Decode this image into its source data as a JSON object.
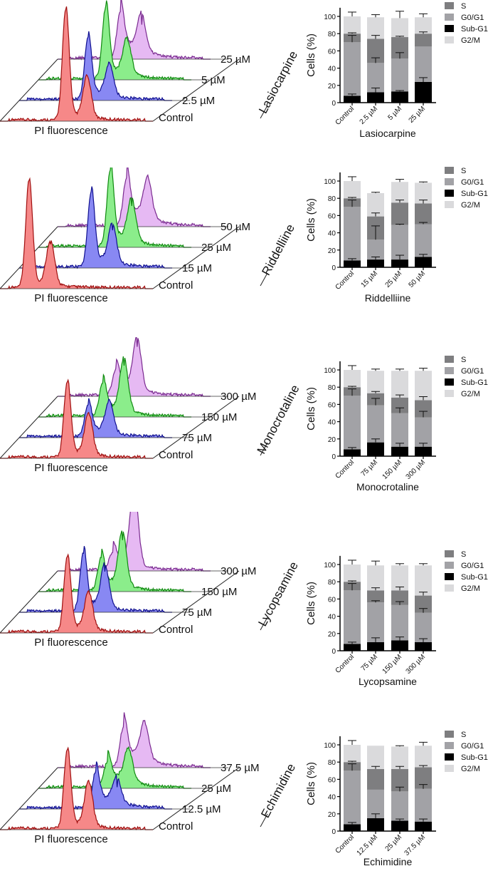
{
  "legend": {
    "order": [
      "S",
      "G0/G1",
      "Sub-G1",
      "G2/M"
    ],
    "colors": {
      "Sub-G1": "#000000",
      "G0/G1": "#a2a2a6",
      "S": "#7e7e80",
      "G2/M": "#dadadc"
    }
  },
  "trace_colors": [
    {
      "fill": "#f46a6a",
      "line": "#a01010"
    },
    {
      "fill": "#6a6af0",
      "line": "#101090"
    },
    {
      "fill": "#6ee86e",
      "line": "#108a10"
    },
    {
      "fill": "#e0a8f0",
      "line": "#7a2a90"
    }
  ],
  "chart_data": [
    {
      "type": "bar",
      "stacked": true,
      "xlabel": "Lasiocarpine",
      "ylabel": "Cells (%)",
      "ylim": [
        0,
        110
      ],
      "yticks": [
        "0",
        "20",
        "40",
        "60",
        "80",
        "100"
      ],
      "categories": [
        "Control",
        "2.5 µM",
        "5 µM",
        "25 µM"
      ],
      "series": [
        {
          "name": "Sub-G1",
          "values": [
            8,
            12,
            13,
            24
          ],
          "errors": [
            2,
            5,
            1,
            5
          ]
        },
        {
          "name": "G0/G1",
          "values": [
            62,
            34,
            38,
            41
          ],
          "errors": [
            8,
            6,
            7,
            0
          ]
        },
        {
          "name": "S",
          "values": [
            10,
            28,
            25,
            15
          ],
          "errors": [
            1,
            4,
            1,
            2
          ]
        },
        {
          "name": "G2/M",
          "values": [
            20,
            25,
            22,
            19
          ],
          "errors": [
            5,
            3,
            8,
            4
          ]
        }
      ],
      "histogram": {
        "xlabel": "PI fluorescence",
        "compound": "Lasiocarpine",
        "labels": [
          "Control",
          "2.5 µM",
          "5 µM",
          "25 µM"
        ],
        "traces": [
          {
            "p": 0.43,
            "g1": 155,
            "g2": 55,
            "s": 12
          },
          {
            "p": 0.45,
            "g1": 88,
            "g2": 40,
            "s": 18
          },
          {
            "p": 0.44,
            "g1": 100,
            "g2": 45,
            "s": 22
          },
          {
            "p": 0.41,
            "g1": 65,
            "g2": 45,
            "s": 35
          }
        ]
      }
    },
    {
      "type": "bar",
      "stacked": true,
      "xlabel": "Riddelliine",
      "ylabel": "Cells (%)",
      "ylim": [
        0,
        110
      ],
      "yticks": [
        "0",
        "20",
        "40",
        "60",
        "80",
        "100"
      ],
      "categories": [
        "Control",
        "15 µM",
        "25 µM",
        "50 µM"
      ],
      "series": [
        {
          "name": "Sub-G1",
          "values": [
            8,
            9,
            9,
            12
          ],
          "errors": [
            2,
            3,
            5,
            3
          ]
        },
        {
          "name": "G0/G1",
          "values": [
            62,
            23,
            40,
            38
          ],
          "errors": [
            8,
            16,
            1,
            2
          ]
        },
        {
          "name": "S",
          "values": [
            10,
            27,
            26,
            24
          ],
          "errors": [
            1,
            4,
            3,
            4
          ]
        },
        {
          "name": "G2/M",
          "values": [
            20,
            27,
            24,
            24
          ],
          "errors": [
            5,
            1,
            3,
            1
          ]
        }
      ],
      "histogram": {
        "xlabel": "PI fluorescence",
        "compound": "Riddelliine",
        "labels": [
          "Control",
          "15 µM",
          "25 µM",
          "50 µM"
        ],
        "traces": [
          {
            "p": 0.19,
            "g1": 150,
            "g2": 60,
            "s": 12
          },
          {
            "p": 0.47,
            "g1": 105,
            "g2": 50,
            "s": 20
          },
          {
            "p": 0.47,
            "g1": 107,
            "g2": 55,
            "s": 25
          },
          {
            "p": 0.45,
            "g1": 65,
            "g2": 50,
            "s": 35
          }
        ]
      }
    },
    {
      "type": "bar",
      "stacked": true,
      "xlabel": "Monocrotaline",
      "ylabel": "Cells (%)",
      "ylim": [
        0,
        110
      ],
      "yticks": [
        "0",
        "20",
        "40",
        "60",
        "80",
        "100"
      ],
      "categories": [
        "Control",
        "75 µM",
        "150 µM",
        "300 µM"
      ],
      "series": [
        {
          "name": "Sub-G1",
          "values": [
            8,
            16,
            11,
            11
          ],
          "errors": [
            2,
            4,
            4,
            4
          ]
        },
        {
          "name": "G0/G1",
          "values": [
            62,
            43,
            39,
            34
          ],
          "errors": [
            8,
            8,
            6,
            7
          ]
        },
        {
          "name": "S",
          "values": [
            10,
            14,
            18,
            20
          ],
          "errors": [
            1,
            2,
            3,
            4
          ]
        },
        {
          "name": "G2/M",
          "values": [
            20,
            26,
            31,
            34
          ],
          "errors": [
            5,
            2,
            2,
            3
          ]
        }
      ],
      "histogram": {
        "xlabel": "PI fluorescence",
        "compound": "Monocrotaline",
        "labels": [
          "Control",
          "75 µM",
          "150 µM",
          "300 µM"
        ],
        "traces": [
          {
            "p": 0.44,
            "g1": 105,
            "g2": 55,
            "s": 12
          },
          {
            "p": 0.45,
            "g1": 45,
            "g2": 40,
            "s": 18
          },
          {
            "p": 0.42,
            "g1": 45,
            "g2": 70,
            "s": 22
          },
          {
            "p": 0.38,
            "g1": 35,
            "g2": 67,
            "s": 28
          }
        ]
      }
    },
    {
      "type": "bar",
      "stacked": true,
      "xlabel": "Lycopsamine",
      "ylabel": "Cells (%)",
      "ylim": [
        0,
        110
      ],
      "yticks": [
        "0",
        "20",
        "40",
        "60",
        "80",
        "100"
      ],
      "categories": [
        "Control",
        "75 µM",
        "150 µM",
        "300 µM"
      ],
      "series": [
        {
          "name": "Sub-G1",
          "values": [
            8,
            10,
            12,
            10
          ],
          "errors": [
            2,
            5,
            4,
            4
          ]
        },
        {
          "name": "G0/G1",
          "values": [
            62,
            46,
            41,
            34
          ],
          "errors": [
            8,
            2,
            4,
            5
          ]
        },
        {
          "name": "S",
          "values": [
            10,
            14,
            17,
            20
          ],
          "errors": [
            1,
            3,
            4,
            4
          ]
        },
        {
          "name": "G2/M",
          "values": [
            20,
            29,
            29,
            35
          ],
          "errors": [
            5,
            5,
            2,
            2
          ]
        }
      ],
      "histogram": {
        "xlabel": "PI fluorescence",
        "compound": "Lycopsamine",
        "labels": [
          "Control",
          "75 µM",
          "150 µM",
          "300 µM"
        ],
        "traces": [
          {
            "p": 0.44,
            "g1": 105,
            "g2": 50,
            "s": 12
          },
          {
            "p": 0.42,
            "g1": 82,
            "g2": 57,
            "s": 18
          },
          {
            "p": 0.41,
            "g1": 45,
            "g2": 72,
            "s": 22
          },
          {
            "p": 0.36,
            "g1": 25,
            "g2": 105,
            "s": 25
          }
        ]
      }
    },
    {
      "type": "bar",
      "stacked": true,
      "xlabel": "Echimidine",
      "ylabel": "Cells (%)",
      "ylim": [
        0,
        110
      ],
      "yticks": [
        "0",
        "20",
        "40",
        "60",
        "80",
        "100"
      ],
      "categories": [
        "Control",
        "12.5 µM",
        "25 µM",
        "37.5 µM"
      ],
      "series": [
        {
          "name": "Sub-G1",
          "values": [
            8,
            15,
            12,
            11
          ],
          "errors": [
            2,
            5,
            2,
            3
          ]
        },
        {
          "name": "G0/G1",
          "values": [
            62,
            33,
            34,
            38
          ],
          "errors": [
            8,
            0,
            5,
            5
          ]
        },
        {
          "name": "S",
          "values": [
            10,
            24,
            26,
            25
          ],
          "errors": [
            1,
            3,
            3,
            2
          ]
        },
        {
          "name": "G2/M",
          "values": [
            20,
            27,
            26,
            25
          ],
          "errors": [
            5,
            0,
            1,
            4
          ]
        }
      ],
      "histogram": {
        "xlabel": "PI fluorescence",
        "compound": "Echimidine",
        "labels": [
          "Control",
          "12.5 µM",
          "25 µM",
          "37.5 µM"
        ],
        "traces": [
          {
            "p": 0.44,
            "g1": 110,
            "g2": 60,
            "s": 12
          },
          {
            "p": 0.5,
            "g1": 50,
            "g2": 30,
            "s": 25
          },
          {
            "p": 0.45,
            "g1": 35,
            "g2": 40,
            "s": 28
          },
          {
            "p": 0.43,
            "g1": 55,
            "g2": 45,
            "s": 35
          }
        ]
      }
    }
  ]
}
